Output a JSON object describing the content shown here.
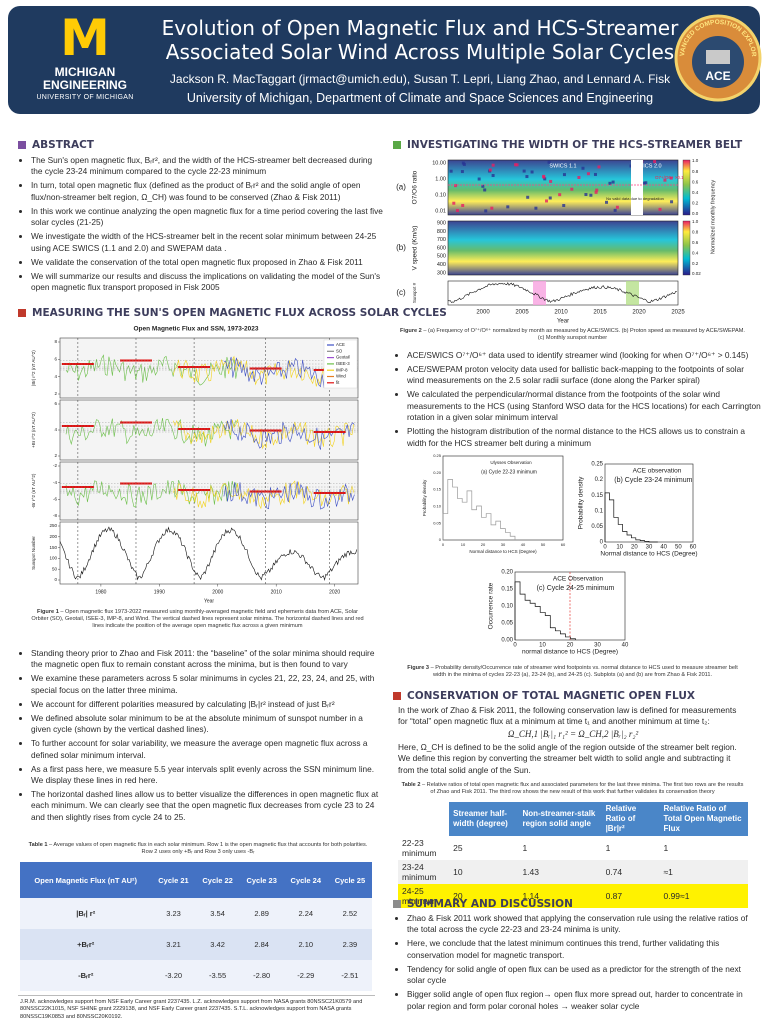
{
  "header": {
    "logo_letter": "M",
    "logo_line1": "MICHIGAN",
    "logo_line2": "ENGINEERING",
    "logo_line3": "UNIVERSITY OF MICHIGAN",
    "title": "Evolution of Open Magnetic Flux and HCS-Streamer Associated Solar Wind Across Multiple Solar Cycles",
    "authors": "Jackson R. MacTaggart (jrmact@umich.edu), Susan T. Lepri, Liang Zhao, and Lennard A. Fisk",
    "affiliation": "University of Michigan, Department of Climate and Space Sciences and Engineering",
    "badge_ring": "ADVANCED COMPOSITION EXPLORER",
    "badge_label": "ACE"
  },
  "abstract": {
    "heading": "ABSTRACT",
    "bullets": [
      "The Sun's open magnetic flux, Bᵣr², and the width of the HCS-streamer belt decreased during the cycle 23-24 minimum compared to the cycle 22-23 minimum",
      "In turn, total open magnetic flux (defined as the product of Bᵣr² and the solid angle of open flux/non-streamer belt region, Ω_CH) was found to be conserved (Zhao & Fisk 2011)",
      "In this work we continue analyzing the open magnetic flux for a time period covering the last five solar cycles (21-25)",
      "We investigate the width of the HCS-streamer belt in the recent solar minimum between 24-25 using ACE SWICS (1.1 and 2.0) and SWEPAM data .",
      "We validate the conservation of the total open magnetic flux proposed in Zhao & Fisk 2011",
      "We will summarize our results and discuss the implications on validating the model of the Sun's open magnetic flux transport proposed in Fisk 2005"
    ]
  },
  "measuring": {
    "heading": "MEASURING THE SUN'S OPEN MAGNETIC FLUX ACROSS SOLAR CYCLES",
    "figure": {
      "title": "Open Magnetic Flux and SSN, 1973-2023",
      "legend": [
        "ACE",
        "SO",
        "Geotail",
        "ISEE-3",
        "IMP-8",
        "Wind",
        "fit"
      ],
      "panel_labels": [
        "|Br| r^2 (nT AU^2)",
        "+Br r^2 (nT AU^2)",
        "-Br r^2 (nT AU^2)",
        "Sunspot Number"
      ],
      "panel_yticks": [
        [
          2,
          4,
          6,
          8
        ],
        [
          2,
          4,
          6
        ],
        [
          -8,
          -6,
          -4,
          -2
        ],
        [
          0,
          50,
          100,
          150,
          200,
          250
        ]
      ],
      "xticks": [
        1980,
        1990,
        2000,
        2010,
        2020
      ],
      "xlim": [
        1973,
        2024
      ],
      "xlabel": "Year"
    },
    "caption_label": "Figure 1",
    "caption": " – Open magnetic flux 1973-2022 measured using monthly-averaged magnetic field and ephemeris data from ACE, Solar Orbiter (SO), Geotail, ISEE-3, IMP-8, and Wind. The vertical dashed lines represent solar minima. The horizontal dashed lines and red lines indicate the position of the average open magnetic flux across a given minimum",
    "bullets": [
      "Standing theory prior to Zhao and Fisk 2011: the “baseline” of the solar minima should require the magnetic open flux to remain constant across the minima, but is then found to vary",
      "We examine these parameters across 5 solar minimums in cycles 21, 22, 23, 24, and 25, with special focus on the latter three minima.",
      "We account for different polarities measured by calculating |Bᵣ|r² instead of just Bᵣr²",
      "We defined absolute solar minimum to be at the absolute minimum of sunspot number in a given cycle (shown by the vertical dashed lines).",
      "To further account for solar variability, we measure the average open magnetic flux across a defined solar minimum interval.",
      "As a first pass here, we measure 5.5 year intervals split evenly across the SSN minimum line. We display these lines in red here.",
      "The horizontal dashed lines allow us to better visualize the differences in open magnetic flux at each minimum. We can clearly see that the open magnetic flux decreases from cycle 23 to 24 and then slightly rises from cycle 24 to 25."
    ]
  },
  "table1": {
    "caption_label": "Table 1",
    "caption": " – Average values of open magnetic flux in each solar minimum. Row 1 is the open magnetic flux that accounts for both polarities. Row 2 uses only +Bᵣ and Row 3 only uses -Bᵣ",
    "header": [
      "Open Magnetic Flux (nT AU²)",
      "Cycle 21",
      "Cycle 22",
      "Cycle 23",
      "Cycle 24",
      "Cycle 25"
    ],
    "rows": [
      [
        "|Bᵣ| r²",
        "3.23",
        "3.54",
        "2.89",
        "2.24",
        "2.52"
      ],
      [
        "+Bᵣr²",
        "3.21",
        "3.42",
        "2.84",
        "2.10",
        "2.39"
      ],
      [
        "-Bᵣr²",
        "-3.20",
        "-3.55",
        "-2.80",
        "-2.29",
        "-2.51"
      ]
    ]
  },
  "acknowledgments": "J.R.M. acknowledges support from NSF Early Career grant 2237435. L.Z. acknowledges support from NASA grants 80NSSC21K0579 and 80NSSC22K1015, NSF SHINE grant 2229138, and NSF Early Career grant 2237435. S.T.L. acknowledges support from NASA grants 80NSSC19K0853 and 80NSSC20K0192.",
  "investigating": {
    "heading": "INVESTIGATING THE WIDTH OF THE HCS-STREAMER BELT",
    "figure2": {
      "panel_tags": [
        "(a)",
        "(b)",
        "(c)"
      ],
      "ylabels": [
        "O7/O6 ratio",
        "V speed (Km/s)",
        "Sunspot #"
      ],
      "a_yticks": [
        "10.00",
        "1.00",
        "0.10",
        "0.01"
      ],
      "b_yticks": [
        900,
        800,
        700,
        600,
        500,
        400,
        300
      ],
      "notes": [
        "SWICS 1.1",
        "SWICS 2.0",
        "O7+/O6+ >0.145",
        "No valid data due to degradation"
      ],
      "colorbar_a": [
        "1.0",
        "0.8",
        "0.6",
        "0.4",
        "0.2",
        "0.0"
      ],
      "colorbar_b": [
        "1.0",
        "0.8",
        "0.6",
        "0.4",
        "0.2",
        "0.02"
      ],
      "colorbar_label": "Normalized monthly frequency",
      "xticks": [
        2000,
        2005,
        2010,
        2015,
        2020,
        2025
      ],
      "xlabel": "Year"
    },
    "figure2_caption_label": "Figure 2",
    "figure2_caption": " – (a) Frequency of O⁷⁺/O⁶⁺ normalized by month as measured by ACE/SWICS. (b) Proton speed as measured by ACE/SWEPAM. (c) Monthly sunspot number",
    "bullets": [
      "ACE/SWICS O⁷⁺/O⁶⁺ data used to identify streamer wind (looking for when O⁷⁺/O⁶⁺ > 0.145)",
      "ACE/SWEPAM proton velocity data used for ballistic back-mapping to the footpoints of solar wind measurements on the 2.5 solar radii surface (done along the Parker spiral)",
      "We calculated the perpendicular/normal distance from the footpoints of the solar wind measurements to the HCS (using Stanford WSO data for the HCS locations) for each Carrington rotation in a given solar minimum interval",
      "Plotting the histogram distribution of the normal distance to the HCS allows us to constrain a width for the HCS streamer belt during a minimum"
    ],
    "figure3": [
      {
        "observation": "Ulysses Observation",
        "title": "(a) Cycle 22-23 minimum",
        "ylabel": "Probability density",
        "xlabel": "Normal distance to HCS (Degree)",
        "yticks": [
          "0.25",
          "0.20",
          "0.15",
          "0.10",
          "0.05",
          "0"
        ],
        "xticks": [
          0,
          10,
          20,
          30,
          40,
          50,
          60
        ]
      },
      {
        "observation": "ACE observation",
        "title": "(b) Cycle 23-24 minimum",
        "ylabel": "Probability density",
        "xlabel": "Normal distance to HCS (Degree)",
        "yticks": [
          "0.25",
          "0.2",
          "0.15",
          "0.1",
          "0.05",
          "0"
        ],
        "xticks": [
          0,
          10,
          20,
          30,
          40,
          50,
          60
        ]
      },
      {
        "observation": "ACE Observation",
        "title": "(c) Cycle 24-25 minimum",
        "ylabel": "Occurrence rate",
        "xlabel": "normal distance to HCS (Degree)",
        "yticks": [
          "0.20",
          "0.15",
          "0.10",
          "0.05",
          "0.00"
        ],
        "xticks": [
          0,
          10,
          20,
          30,
          40
        ]
      }
    ],
    "figure3_caption_label": "Figure 3",
    "figure3_caption": " – Probability density/Occurrence rate of streamer wind footpoints vs. normal distance to HCS used to measure streamer belt width in the minima of cycles 22-23 (a), 23-24 (b), and 24-25 (c). Subplots (a) and (b) are from Zhao & Fisk 2011."
  },
  "conservation": {
    "heading": "CONSERVATION OF TOTAL MAGNETIC OPEN FLUX",
    "paragraph1": "In the work of Zhao & Fisk 2011, the following conservation law is defined for measurements for “total” open magnetic flux at a minimum at time t₁ and another minimum at time t₂:",
    "equation": "Ω_CH,1 |Bᵣ|₁ r₁² = Ω_CH,2 |Bᵣ|₂ r₂²",
    "paragraph2": "Here, Ω_CH is defined to be the solid angle of the region outside of the streamer belt region. We define this region by converting the streamer belt width to solid angle and subtracting it from the total solid angle of the Sun."
  },
  "table2": {
    "caption_label": "Table 2",
    "caption": " – Relative ratios of total open magnetic flux and associated parameters for the last three minima. The first two rows are the results of Zhao and Fisk 2011. The third row shows the new result of this work that further validates its conservation theory",
    "header": [
      "Streamer half-width (degree)",
      "Non-streamer-stalk region solid angle",
      "Relative Ratio of |Br|r²",
      "Relative Ratio of Total Open Magnetic Flux"
    ],
    "rows": [
      [
        "22-23 minimum",
        "25",
        "1",
        "1",
        "1"
      ],
      [
        "23-24 minimum",
        "10",
        "1.43",
        "0.74",
        "≈1"
      ],
      [
        "24-25 minimum",
        "20",
        "1.14",
        "0.87",
        "0.99≈1"
      ]
    ]
  },
  "summary": {
    "heading": "SUMMARY AND DISCUSSION",
    "bullets": [
      "Zhao & Fisk 2011 work showed that applying the conservation rule using the relative ratios of the total across the cycle 22-23 and 23-24 minima is unity.",
      "Here, we conclude that the latest minimum continues this trend, further validating this conservation model for magnetic transport.",
      "Tendency for solid angle of open flux can be used as a predictor for the strength of the next solar cycle",
      "Bigger solid angle of open flux region→ open flux more spread out, harder to concentrate in polar region and form polar coronal holes → weaker solar cycle"
    ]
  }
}
